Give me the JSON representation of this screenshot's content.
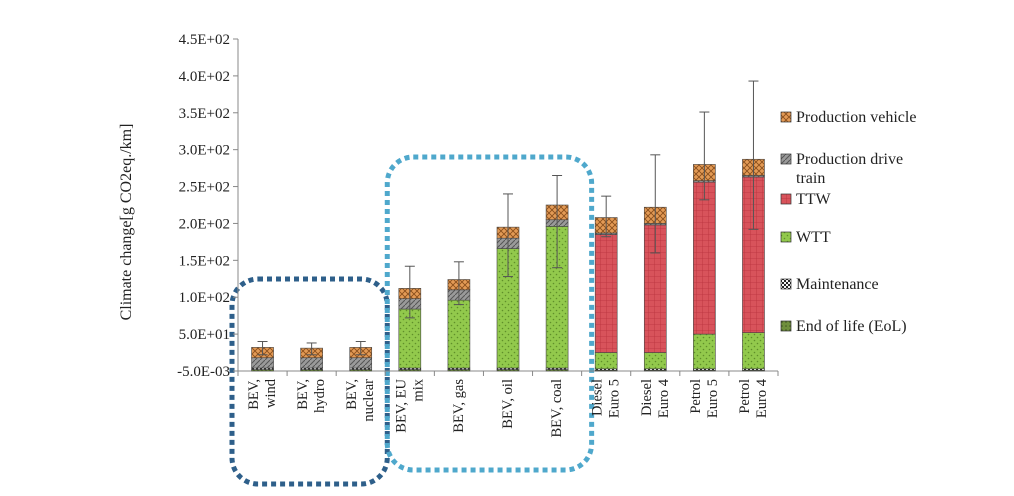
{
  "chart_data": {
    "type": "bar",
    "stacked": true,
    "ylabel": "Climate change[g CO2eq./km]",
    "xlabel": "",
    "ylim": [
      -0.005,
      450
    ],
    "y_ticks": [
      "-5.0E-03",
      "5.0E+01",
      "1.0E+02",
      "1.5E+02",
      "2.0E+02",
      "2.5E+02",
      "3.0E+02",
      "3.5E+02",
      "4.0E+02",
      "4.5E+02"
    ],
    "y_tick_values": [
      -0.005,
      50,
      100,
      150,
      200,
      250,
      300,
      350,
      400,
      450
    ],
    "grid": false,
    "legend_position": "right",
    "categories": [
      [
        "BEV,",
        "wind"
      ],
      [
        "BEV,",
        "hydro"
      ],
      [
        "BEV,",
        "nuclear"
      ],
      [
        "BEV, EU",
        "mix"
      ],
      [
        "BEV,  gas"
      ],
      [
        "BEV, oil"
      ],
      [
        "BEV,  coal"
      ],
      [
        "Diesel",
        "Euro 5"
      ],
      [
        "Diesel",
        "Euro 4"
      ],
      [
        "Petrol",
        "Euro 5"
      ],
      [
        "Petrol",
        "Euro 4"
      ]
    ],
    "series": [
      {
        "name": "End of life (EoL)",
        "color": "#6f8f3c",
        "pattern": "dots-dark",
        "values": [
          2,
          2,
          2,
          2,
          2,
          2,
          2,
          1,
          1,
          1,
          1
        ]
      },
      {
        "name": "Maintenance",
        "color": "#e8e8e8",
        "pattern": "checker",
        "values": [
          2,
          2,
          2,
          2,
          2,
          2,
          2,
          2,
          2,
          2,
          2
        ]
      },
      {
        "name": "WTT",
        "color": "#92c94c",
        "pattern": "dots-green",
        "values": [
          0,
          0,
          0,
          80,
          92,
          162,
          192,
          22,
          22,
          47,
          49
        ]
      },
      {
        "name": "TTW",
        "color": "#d8535b",
        "pattern": "grid-red",
        "values": [
          0,
          0,
          0,
          0,
          0,
          0,
          0,
          160,
          173,
          206,
          211
        ]
      },
      {
        "name": "Production drive train",
        "color": "#8d8d8d",
        "pattern": "hatch-grey",
        "values": [
          14,
          14,
          14,
          14,
          14,
          14,
          9,
          2,
          2,
          2,
          2
        ]
      },
      {
        "name": "Production vehicle",
        "color": "#e39a55",
        "pattern": "cross-orange",
        "values": [
          14,
          13,
          14,
          14,
          14,
          15,
          20,
          21,
          22,
          22,
          22
        ]
      }
    ],
    "error_bars": [
      {
        "low": 22,
        "high": 40
      },
      {
        "low": 22,
        "high": 38
      },
      {
        "low": 22,
        "high": 40
      },
      {
        "low": 72,
        "high": 142
      },
      {
        "low": 90,
        "high": 148
      },
      {
        "low": 128,
        "high": 240
      },
      {
        "low": 140,
        "high": 265
      },
      {
        "low": 182,
        "high": 237
      },
      {
        "low": 160,
        "high": 293
      },
      {
        "low": 232,
        "high": 351
      },
      {
        "low": 192,
        "high": 393
      }
    ],
    "legend": [
      {
        "label": "Production vehicle",
        "series": 5
      },
      {
        "label": "Production drive\ntrain",
        "series": 4
      },
      {
        "label": "TTW",
        "series": 3
      },
      {
        "label": "WTT",
        "series": 2
      },
      {
        "label": "Maintenance",
        "series": 1
      },
      {
        "label": "End of life (EoL)",
        "series": 0
      }
    ],
    "annotations": [
      {
        "kind": "dashed-box",
        "color": "#2e5f8a",
        "label": "",
        "categories_from": 0,
        "categories_to": 2
      },
      {
        "kind": "dashed-box",
        "color": "#4fa8cc",
        "label": "",
        "categories_from": 3,
        "categories_to": 6
      }
    ]
  }
}
